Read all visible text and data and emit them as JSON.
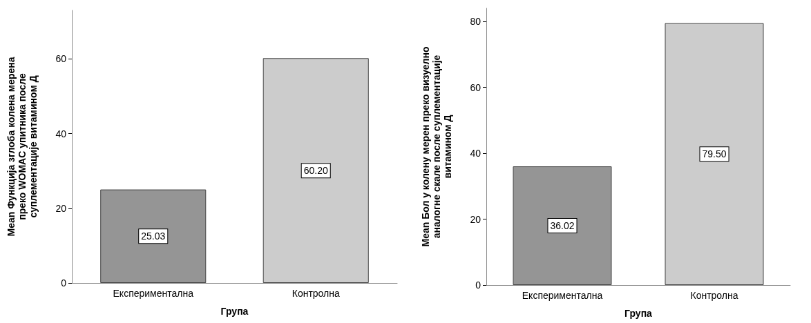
{
  "chart_data": [
    {
      "type": "bar",
      "xlabel": "Група",
      "ylabel": "Mean Функција зглоба колена мерена\nпреко WOMAC упитника после\nсуплементације витамином Д",
      "categories": [
        "Експериментална",
        "Контролна"
      ],
      "values": [
        25.03,
        60.2
      ],
      "value_labels": [
        "25.03",
        "60.20"
      ],
      "colors": [
        "#959595",
        "#cccccc"
      ],
      "ylim": [
        0,
        73
      ],
      "yticks": [
        0,
        20,
        40,
        60
      ],
      "grid": false
    },
    {
      "type": "bar",
      "xlabel": "Група",
      "ylabel": "Mean Бол у колену мерен преко визуелно\nаналогне скале после суплементације\nвитамином Д",
      "categories": [
        "Експериментална",
        "Контролна"
      ],
      "values": [
        36.02,
        79.5
      ],
      "value_labels": [
        "36.02",
        "79.50"
      ],
      "colors": [
        "#959595",
        "#cccccc"
      ],
      "ylim": [
        0,
        84
      ],
      "yticks": [
        0,
        20,
        40,
        60,
        80
      ],
      "grid": false
    }
  ]
}
